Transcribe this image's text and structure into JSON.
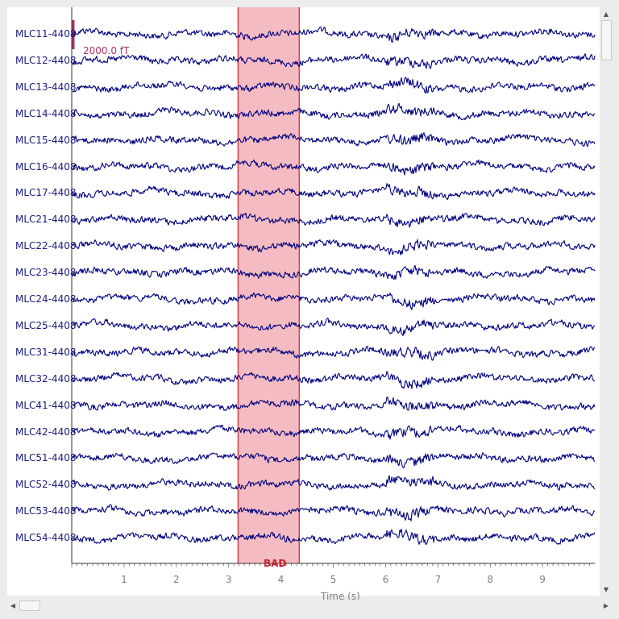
{
  "channels": [
    "MLC11-4408",
    "MLC12-4408",
    "MLC13-4408",
    "MLC14-4408",
    "MLC15-4408",
    "MLC16-4408",
    "MLC17-4408",
    "MLC21-4408",
    "MLC22-4408",
    "MLC23-4408",
    "MLC24-4408",
    "MLC25-4408",
    "MLC31-4408",
    "MLC32-4408",
    "MLC41-4408",
    "MLC42-4408",
    "MLC51-4408",
    "MLC52-4408",
    "MLC53-4408",
    "MLC54-4408"
  ],
  "scale_bar": {
    "label": "2000.0 fT",
    "color": "#b0306a"
  },
  "annotation": {
    "label": "BAD",
    "start_s": 3.18,
    "end_s": 4.35,
    "fill": "#f4bcc2",
    "edge": "#d9404c",
    "text_color": "#cc1f2a"
  },
  "x_axis": {
    "label": "Time (s)",
    "range_s": [
      0,
      10
    ],
    "ticks": [
      "1",
      "2",
      "3",
      "4",
      "5",
      "6",
      "7",
      "8",
      "9"
    ]
  },
  "trace_color": "#000080",
  "scrollbars": {
    "vertical": {
      "up_icon": "▲",
      "down_icon": "▼"
    },
    "horizontal": {
      "left_icon": "◀",
      "right_icon": "▶"
    }
  }
}
